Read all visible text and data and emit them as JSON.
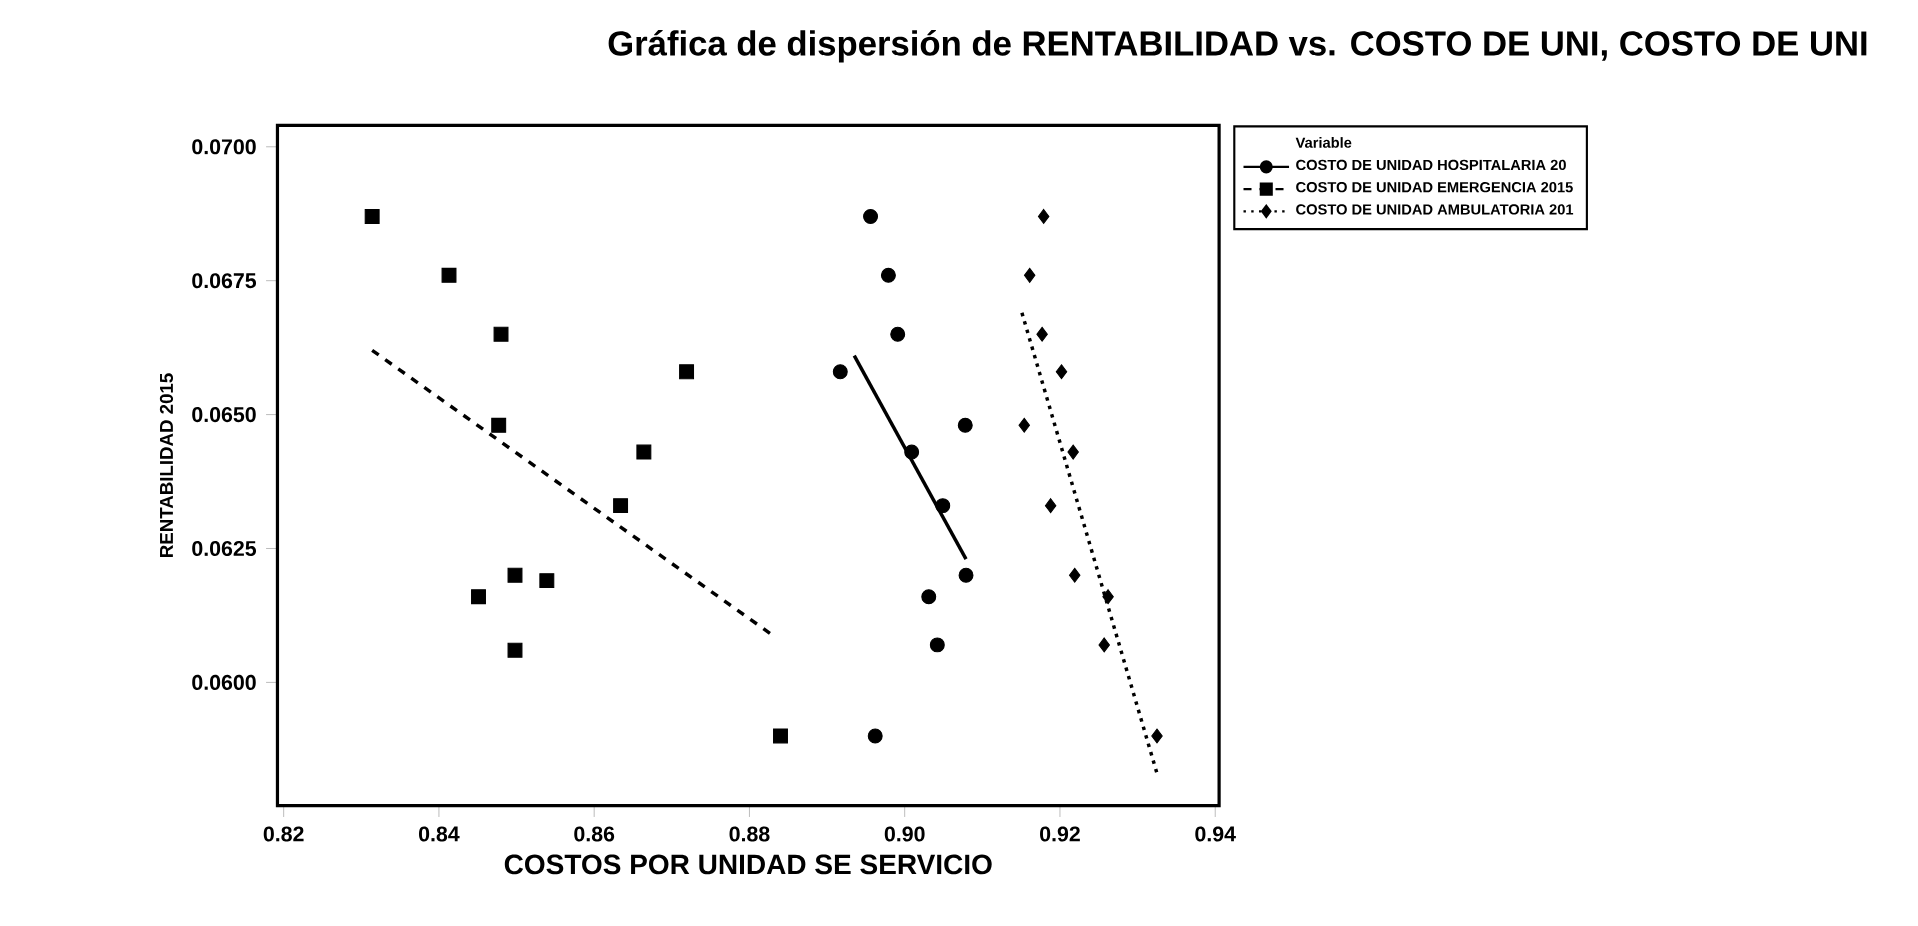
{
  "chart_data": {
    "type": "scatter",
    "title": "Gráfica de dispersión de RENTABILIDAD vs. COSTO DE UNI, COSTO DE UNI",
    "xlabel": "COSTOS POR UNIDAD SE SERVICIO",
    "ylabel": "RENTABILIDAD 2015",
    "legend_title": "Variable",
    "legend": "top right",
    "grid": false,
    "xlim": [
      0.8192,
      0.9405
    ],
    "ylim": [
      0.0577,
      0.0704
    ],
    "xticks": [
      0.82,
      0.84,
      0.86,
      0.88,
      {
        "value": 0.9,
        "label": "0.90"
      },
      0.92,
      0.94
    ],
    "yticks": [
      {
        "value": 0.06,
        "label": "0.0600"
      },
      {
        "value": 0.0625,
        "label": "0.0625"
      },
      {
        "value": 0.065,
        "label": "0.0650"
      },
      {
        "value": 0.0675,
        "label": "0.0675"
      },
      {
        "value": 0.07,
        "label": "0.0700"
      }
    ],
    "series": [
      {
        "name": "COSTO DE UNIDAD HOSPITALARIA 20",
        "color": "#000000",
        "marker": "circle",
        "x": [
          0.8956,
          0.8979,
          0.8991,
          0.9078,
          0.9009,
          0.9049,
          0.9079,
          0.9031,
          0.9042,
          0.8962,
          0.8917
        ],
        "values": [
          0.0687,
          0.0676,
          0.0665,
          0.0648,
          0.0643,
          0.0633,
          0.062,
          0.0616,
          0.0607,
          0.059,
          0.0658
        ]
      },
      {
        "name": "COSTO DE UNIDAD EMERGENCIA 2015",
        "color": "#000000",
        "marker": "square",
        "x": [
          0.8314,
          0.8413,
          0.848,
          0.8477,
          0.8451,
          0.8498,
          0.8539,
          0.8498,
          0.8634,
          0.8664,
          0.8719,
          0.884
        ],
        "values": [
          0.0687,
          0.0676,
          0.0665,
          0.0648,
          0.0616,
          0.062,
          0.0619,
          0.0606,
          0.0633,
          0.0643,
          0.0658,
          0.059
        ]
      },
      {
        "name": "COSTO DE UNIDAD AMBULATORIA 201",
        "color": "#000000",
        "marker": "diamond",
        "x": [
          0.9179,
          0.9161,
          0.9177,
          0.9202,
          0.9154,
          0.9217,
          0.9188,
          0.9219,
          0.9262,
          0.9257,
          0.9325
        ],
        "values": [
          0.0687,
          0.0676,
          0.0665,
          0.0658,
          0.0648,
          0.0643,
          0.0633,
          0.062,
          0.0616,
          0.0607,
          0.059
        ]
      },
      {
        "type": "line",
        "color": "#000000",
        "line_style": "solid",
        "x": [
          0.8935,
          0.9079
        ],
        "values": [
          0.0661,
          0.0623
        ]
      },
      {
        "type": "line",
        "color": "#000000",
        "line_style": "dashed",
        "x": [
          0.8314,
          0.8828
        ],
        "values": [
          0.0662,
          0.0609
        ]
      },
      {
        "type": "line",
        "color": "#000000",
        "line_style": "dotted",
        "x": [
          0.9151,
          0.9325
        ],
        "values": [
          0.0669,
          0.0583
        ]
      }
    ]
  }
}
